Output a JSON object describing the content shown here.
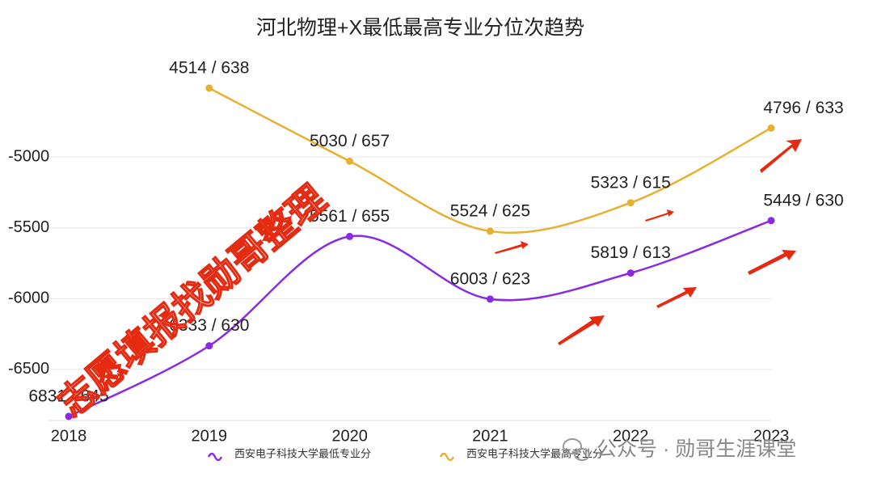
{
  "chart_data": {
    "type": "line",
    "title": "河北物理+X最低最高专业分位次趋势",
    "categories": [
      "2018",
      "2019",
      "2020",
      "2021",
      "2022",
      "2023"
    ],
    "series": [
      {
        "name": "西安电子科技大学最低专业分",
        "color": "#8a2be2",
        "values": [
          -6831,
          -6333,
          -5561,
          -6003,
          -5819,
          -5449
        ],
        "value_labels": [
          "6831 / 645",
          "6333 / 630",
          "5561 / 655",
          "6003 / 623",
          "5819 / 613",
          "5449 / 630"
        ]
      },
      {
        "name": "西安电子科技大学最高专业分",
        "color": "#e6b030",
        "values": [
          null,
          -4514,
          -5030,
          -5524,
          -5323,
          -4796
        ],
        "value_labels": [
          null,
          "4514 / 638",
          "5030 / 657",
          "5524 / 625",
          "5323 / 615",
          "4796 / 633"
        ]
      }
    ],
    "ylim": [
      -6860,
      -4400
    ],
    "yticks": [
      -6500,
      -6000,
      -5500,
      -5000
    ],
    "grid": true,
    "legend": "bottom",
    "watermarks": [
      "志愿填报找勋哥整理",
      "公众号 · 勋哥生涯课堂"
    ]
  }
}
